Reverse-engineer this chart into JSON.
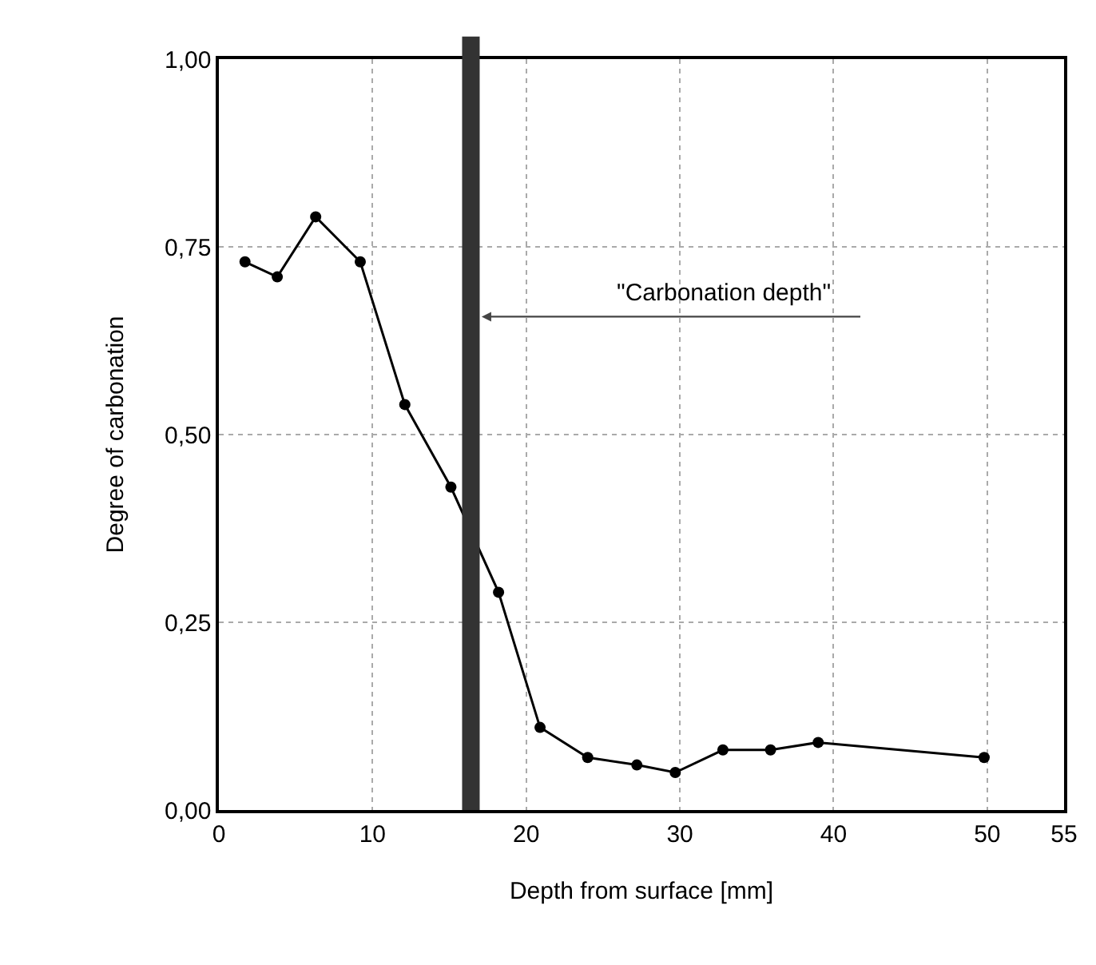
{
  "chart_data": {
    "type": "line",
    "xlabel": "Depth from surface [mm]",
    "ylabel": "Degree of carbonation",
    "x": [
      1.7,
      3.8,
      6.3,
      9.2,
      12.1,
      15.1,
      18.2,
      20.9,
      24.0,
      27.2,
      29.7,
      32.8,
      35.9,
      39.0,
      49.8
    ],
    "series": [
      {
        "color": "#000000",
        "values": [
          0.73,
          0.71,
          0.79,
          0.73,
          0.54,
          0.43,
          0.29,
          0.11,
          0.07,
          0.06,
          0.05,
          0.08,
          0.08,
          0.09,
          0.07
        ]
      }
    ],
    "xlim": [
      0,
      55
    ],
    "xticks": [
      0,
      10,
      20,
      30,
      40,
      50,
      55
    ],
    "ylim": [
      0,
      1
    ],
    "yticks": [
      {
        "value": 0,
        "label": "0,00"
      },
      {
        "value": 0.25,
        "label": "0,25"
      },
      {
        "value": 0.5,
        "label": "0,50"
      },
      {
        "value": 0.75,
        "label": "0,75"
      },
      {
        "value": 1,
        "label": "1,00"
      }
    ],
    "ref_lines": [
      {
        "axis": "x",
        "value": 16.4,
        "label": "\"Carbonation depth\"",
        "color": "#333333"
      }
    ],
    "grid": true,
    "marker": "circle",
    "line_style": "solid"
  }
}
